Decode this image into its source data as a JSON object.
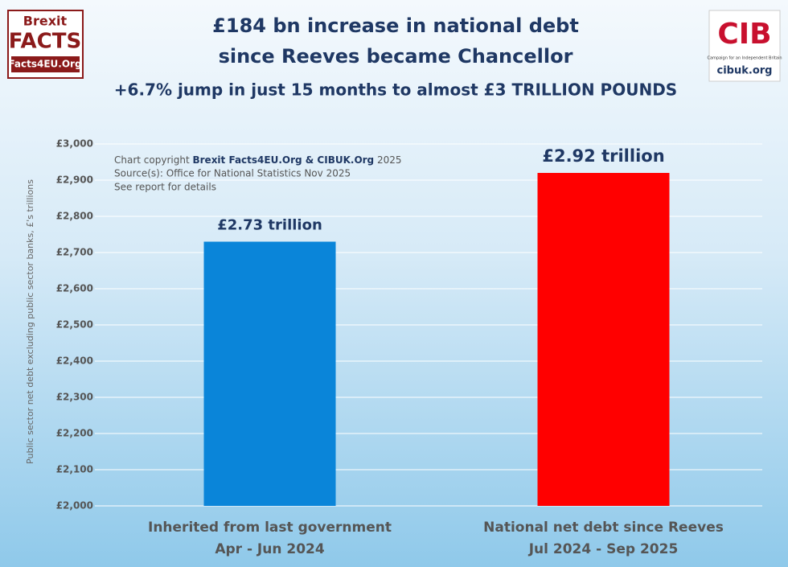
{
  "chart_data": {
    "type": "bar",
    "title": [
      "£184 bn increase in national debt",
      "since Reeves became Chancellor"
    ],
    "subtitle": "+6.7% jump in just 15 months to almost £3 TRILLION POUNDS",
    "ylabel": "Public sector net debt excluding public sector banks, £'s trillions",
    "annotation": {
      "copyright_prefix": "Chart copyright",
      "copyright_owner": "Brexit Facts4EU.Org & CIBUK.Org",
      "copyright_year": "2025",
      "source": "Source(s): Office for National Statistics Nov 2025",
      "note": "See report for details"
    },
    "categories": [
      [
        "Inherited from last government",
        "Apr - Jun 2024"
      ],
      [
        "National net debt since Reeves",
        "Jul 2024 - Sep 2025"
      ]
    ],
    "values": [
      2730,
      2920
    ],
    "value_labels": [
      "£2.73 trillion",
      "£2.92 trillion"
    ],
    "colors": [
      "#0a85d9",
      "#ff0000"
    ],
    "ylim": [
      2000,
      3000
    ],
    "yticks": [
      {
        "value": 2000,
        "label": "£2,000"
      },
      {
        "value": 2100,
        "label": "£2,100"
      },
      {
        "value": 2200,
        "label": "£2,200"
      },
      {
        "value": 2300,
        "label": "£2,300"
      },
      {
        "value": 2400,
        "label": "£2,400"
      },
      {
        "value": 2500,
        "label": "£2,500"
      },
      {
        "value": 2600,
        "label": "£2,600"
      },
      {
        "value": 2700,
        "label": "£2,700"
      },
      {
        "value": 2800,
        "label": "£2,800"
      },
      {
        "value": 2900,
        "label": "£2,900"
      },
      {
        "value": 3000,
        "label": "£3,000"
      }
    ],
    "grid": true
  },
  "logos": {
    "left": [
      "Brexit",
      "FACTS",
      "Facts4EU.Org"
    ],
    "right": [
      "CIB",
      "Campaign for an Independent Britain",
      "cibuk.org"
    ]
  }
}
